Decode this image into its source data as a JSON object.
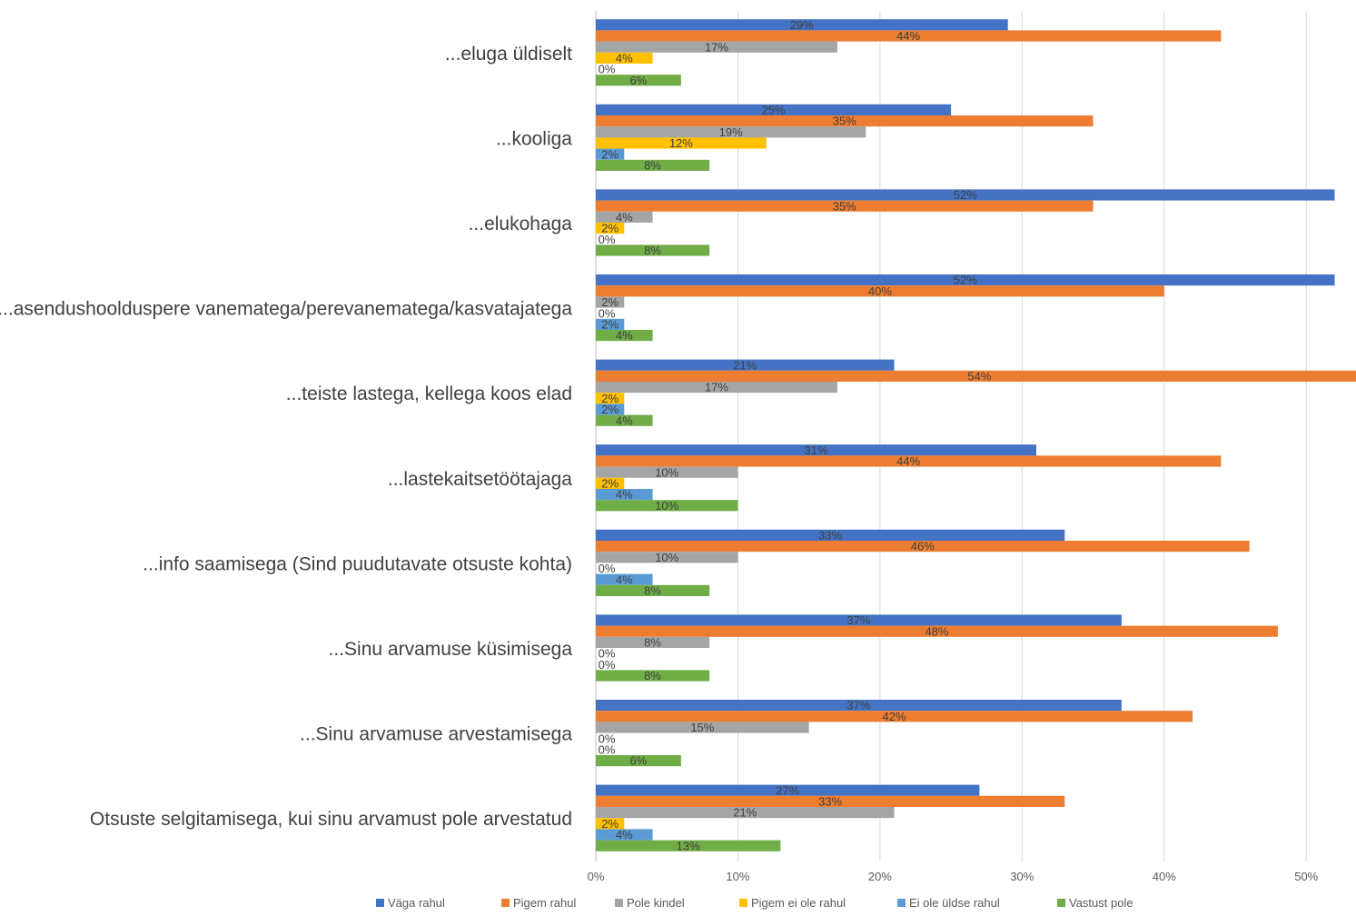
{
  "chart_data": {
    "type": "bar",
    "orientation": "horizontal",
    "categories": [
      "...eluga üldiselt",
      "...kooliga",
      "...elukohaga",
      "...asendushoolduspere vanematega/perevanematega/kasvatajatega",
      "...teiste lastega, kellega koos elad",
      "...lastekaitsetöötajaga",
      "...info saamisega (Sind puudutavate otsuste kohta)",
      "...Sinu arvamuse küsimisega",
      "...Sinu arvamuse arvestamisega",
      "Otsuste selgitamisega, kui sinu arvamust pole arvestatud"
    ],
    "series": [
      {
        "name": "Väga rahul",
        "color": "#4472c4",
        "values": [
          29,
          25,
          52,
          52,
          21,
          31,
          33,
          37,
          37,
          27
        ],
        "labels": [
          "29%",
          "25%",
          "52%",
          "52%",
          "21%",
          "31%",
          "33%",
          "37%",
          "37%",
          "27%"
        ]
      },
      {
        "name": "Pigem rahul",
        "color": "#ed7d31",
        "values": [
          44,
          35,
          35,
          40,
          54,
          44,
          46,
          48,
          42,
          33
        ],
        "labels": [
          "44%",
          "35%",
          "35%",
          "40%",
          "54%",
          "44%",
          "46%",
          "48%",
          "42%",
          "33%"
        ]
      },
      {
        "name": "Pole kindel",
        "color": "#a5a5a5",
        "values": [
          17,
          19,
          4,
          2,
          17,
          10,
          10,
          8,
          15,
          21
        ],
        "labels": [
          "17%",
          "19%",
          "4%",
          "2%",
          "17%",
          "10%",
          "10%",
          "8%",
          "15%",
          "21%"
        ]
      },
      {
        "name": "Pigem ei ole rahul",
        "color": "#ffc000",
        "values": [
          4,
          12,
          2,
          0,
          2,
          2,
          0,
          0,
          0,
          2
        ],
        "labels": [
          "4%",
          "12%",
          "2%",
          "0%",
          "2%",
          "2%",
          "0%",
          "0%",
          "0%",
          "2%"
        ]
      },
      {
        "name": "Ei ole üldse rahul",
        "color": "#5b9bd5",
        "values": [
          0,
          2,
          0,
          2,
          2,
          4,
          4,
          0,
          0,
          4
        ],
        "labels": [
          "0%",
          "2%",
          "0%",
          "2%",
          "2%",
          "4%",
          "4%",
          "0%",
          "0%",
          "4%"
        ]
      },
      {
        "name": "Vastust pole",
        "color": "#70ad47",
        "values": [
          6,
          8,
          8,
          4,
          4,
          10,
          8,
          8,
          6,
          13
        ],
        "labels": [
          "6%",
          "8%",
          "8%",
          "4%",
          "4%",
          "10%",
          "8%",
          "8%",
          "6%",
          "13%"
        ]
      }
    ],
    "x_ticks": [
      "0%",
      "10%",
      "20%",
      "30%",
      "40%",
      "50%"
    ],
    "xlim": [
      0,
      53.5
    ],
    "grid": true,
    "legend_position": "bottom"
  }
}
